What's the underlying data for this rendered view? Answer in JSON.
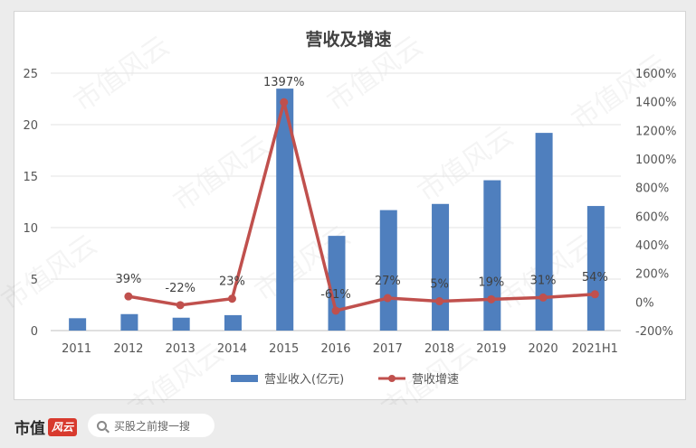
{
  "colors": {
    "bar": "#4f7fbe",
    "line": "#c0504d",
    "axis_text": "#555555"
  },
  "footer": {
    "brand_text": "市值",
    "brand_mark": "风云",
    "search_placeholder": "买股之前搜一搜",
    "search_icon": "search-icon"
  },
  "watermark": "市值风云",
  "chart_data": {
    "type": "bar",
    "title": "营收及增速",
    "categories": [
      "2011",
      "2012",
      "2013",
      "2014",
      "2015",
      "2016",
      "2017",
      "2018",
      "2019",
      "2020",
      "2021H1"
    ],
    "series": [
      {
        "name": "营业收入(亿元)",
        "type": "bar",
        "axis": "left",
        "values": [
          1.2,
          1.6,
          1.25,
          1.5,
          23.5,
          9.2,
          11.7,
          12.3,
          14.6,
          19.2,
          12.1
        ]
      },
      {
        "name": "营收增速",
        "type": "line",
        "axis": "right",
        "values": [
          null,
          39,
          -22,
          23,
          1397,
          -61,
          27,
          5,
          19,
          31,
          54
        ],
        "labels": [
          "",
          "39%",
          "-22%",
          "23%",
          "1397%",
          "-61%",
          "27%",
          "5%",
          "19%",
          "31%",
          "54%"
        ]
      }
    ],
    "y_left": {
      "min": 0,
      "max": 25,
      "ticks": [
        0,
        5,
        10,
        15,
        20,
        25
      ]
    },
    "y_right": {
      "min": -200,
      "max": 1600,
      "ticks": [
        -200,
        0,
        200,
        400,
        600,
        800,
        1000,
        1200,
        1400,
        1600
      ],
      "tick_labels": [
        "-200%",
        "0%",
        "200%",
        "400%",
        "600%",
        "800%",
        "1000%",
        "1200%",
        "1400%",
        "1600%"
      ]
    },
    "legend": "bottom",
    "grid": true
  }
}
